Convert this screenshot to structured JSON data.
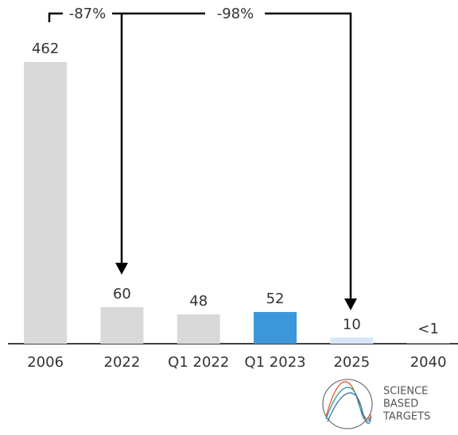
{
  "chart_data": {
    "type": "bar",
    "categories": [
      "2006",
      "2022",
      "Q1 2022",
      "Q1 2023",
      "2025",
      "2040"
    ],
    "values": [
      462,
      60,
      48,
      52,
      10,
      0.5
    ],
    "value_labels": [
      "462",
      "60",
      "48",
      "52",
      "10",
      "<1"
    ],
    "colors": [
      "#d9d9d9",
      "#d9d9d9",
      "#d9d9d9",
      "#3b97da",
      "#d5e7f7",
      "#d9d9d9"
    ],
    "annotations": [
      "-87%",
      "-98%"
    ],
    "logo": [
      "SCIENCE",
      "BASED",
      "TARGETS"
    ]
  }
}
